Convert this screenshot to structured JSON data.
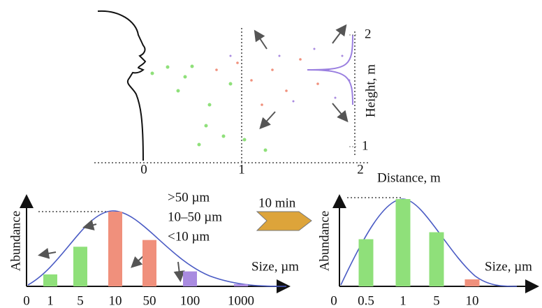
{
  "top": {
    "distance_label": "Distance, m",
    "distance_ticks": [
      "0",
      "1",
      "2"
    ],
    "height_label": "Height, m",
    "height_ticks": [
      "2",
      "1"
    ]
  },
  "legend": {
    "items": [
      ">50 µm",
      "10–50 µm",
      "<10 µm"
    ],
    "time": "10 min"
  },
  "left_hist": {
    "y_label": "Abundance",
    "x_label": "Size, µm",
    "origin_label": "0",
    "categories": [
      "1",
      "5",
      "10",
      "50",
      "100",
      "1000"
    ],
    "values": [
      16,
      53,
      100,
      62,
      20,
      3
    ],
    "colors": [
      "#8fe07a",
      "#8fe07a",
      "#f0907c",
      "#f0907c",
      "#a98be0",
      "#a98be0"
    ]
  },
  "right_hist": {
    "y_label": "Abundance",
    "x_label": "Size, µm",
    "origin_label": "0",
    "categories": [
      "0.5",
      "1",
      "5",
      "10"
    ],
    "values": [
      54,
      100,
      62,
      8
    ],
    "colors": [
      "#8fe07a",
      "#8fe07a",
      "#8fe07a",
      "#f0907c"
    ]
  }
}
